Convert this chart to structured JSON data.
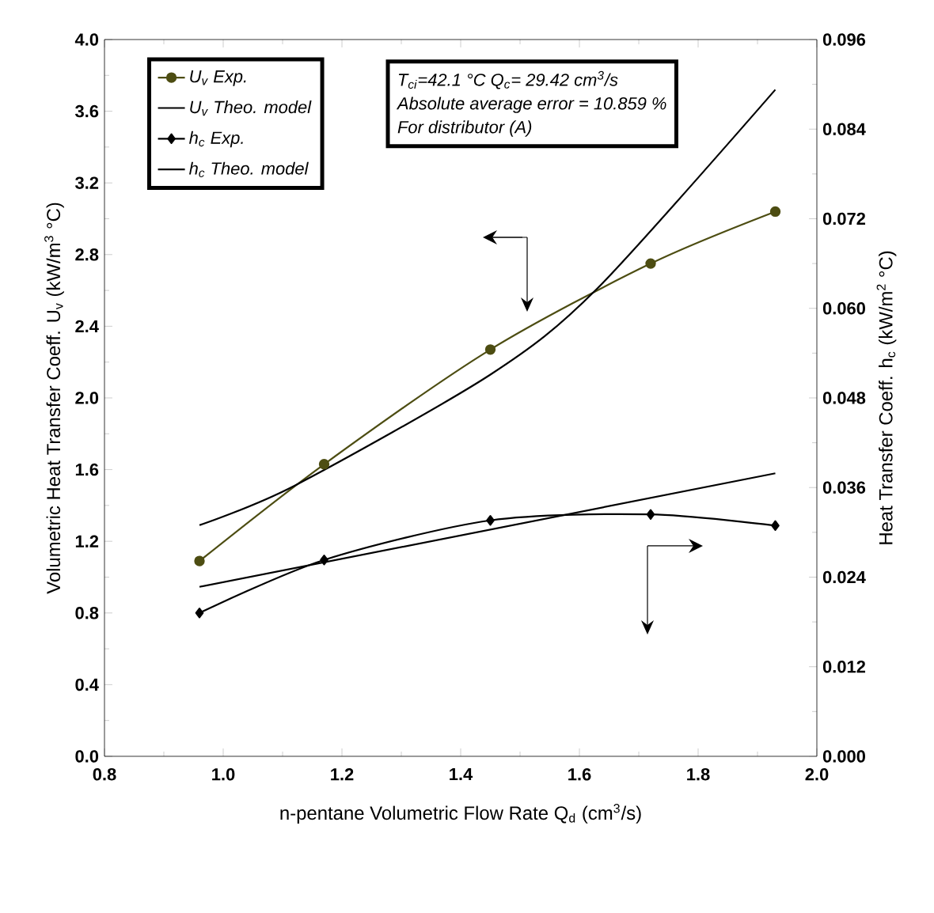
{
  "chart_data": {
    "type": "line",
    "xlabel": "n-pentane Volumetric Flow Rate Q$_{d}$ (cm$^{3}$/s)",
    "ylabel": "Volumetric Heat Transfer Coeff. U$_{v}$ (kW/m$^{3}$ °C)",
    "y2label": "Heat Transfer Coeff. h$_{c}$ (kW/m$^{2}$ °C)",
    "annotations": [
      "T$_{ci}$=42.1 °C   Q$_{c}$= 29.42 cm$^{3}$/s",
      "Absolute average error = 10.859 %",
      "For distributor (A)"
    ],
    "xlim": [
      0.8,
      2.0
    ],
    "xticks": [
      {
        "value": 0.8,
        "label": "0.8"
      },
      {
        "value": 1.0,
        "label": "1.0"
      },
      {
        "value": 1.2,
        "label": "1.2"
      },
      {
        "value": 1.4,
        "label": "1.4"
      },
      {
        "value": 1.6,
        "label": "1.6"
      },
      {
        "value": 1.8,
        "label": "1.8"
      },
      {
        "value": 2.0,
        "label": "2.0"
      }
    ],
    "ylim": [
      0.0,
      4.0
    ],
    "yticks": [
      {
        "value": 0.0,
        "label": "0.0"
      },
      {
        "value": 0.4,
        "label": "0.4"
      },
      {
        "value": 0.8,
        "label": "0.8"
      },
      {
        "value": 1.2,
        "label": "1.2"
      },
      {
        "value": 1.6,
        "label": "1.6"
      },
      {
        "value": 2.0,
        "label": "2.0"
      },
      {
        "value": 2.4,
        "label": "2.4"
      },
      {
        "value": 2.8,
        "label": "2.8"
      },
      {
        "value": 3.2,
        "label": "3.2"
      },
      {
        "value": 3.6,
        "label": "3.6"
      },
      {
        "value": 4.0,
        "label": "4.0"
      }
    ],
    "y2lim": [
      0.0,
      0.096
    ],
    "y2ticks": [
      {
        "value": 0.0,
        "label": "0.000"
      },
      {
        "value": 0.012,
        "label": "0.012"
      },
      {
        "value": 0.024,
        "label": "0.024"
      },
      {
        "value": 0.036,
        "label": "0.036"
      },
      {
        "value": 0.048,
        "label": "0.048"
      },
      {
        "value": 0.06,
        "label": "0.060"
      },
      {
        "value": 0.072,
        "label": "0.072"
      },
      {
        "value": 0.084,
        "label": "0.084"
      },
      {
        "value": 0.096,
        "label": "0.096"
      }
    ],
    "legend": "top left",
    "series": [
      {
        "name": "U$_{v}$ Exp.",
        "color": "#4d4d12",
        "marker": "circle",
        "x": [
          0.96,
          1.17,
          1.45,
          1.72,
          1.93
        ],
        "values": [
          1.09,
          1.63,
          2.27,
          2.75,
          3.04
        ]
      },
      {
        "name": "U$_{v}$ Theo. model",
        "color": "#000000",
        "x": [
          0.96,
          1.12,
          1.45,
          1.63,
          1.93
        ],
        "values": [
          1.29,
          1.51,
          2.13,
          2.61,
          3.72
        ]
      },
      {
        "name": "h$_{c}$ Exp.",
        "color": "#000000",
        "marker": "diamond",
        "axis": "y2",
        "x": [
          0.96,
          1.17,
          1.45,
          1.72,
          1.93
        ],
        "values": [
          0.0192,
          0.0263,
          0.0316,
          0.0324,
          0.0309
        ]
      },
      {
        "name": "h$_{c}$ Theo. model",
        "color": "#000000",
        "axis": "y2",
        "x": [
          0.96,
          1.93
        ],
        "values": [
          0.0227,
          0.0379
        ]
      }
    ]
  }
}
